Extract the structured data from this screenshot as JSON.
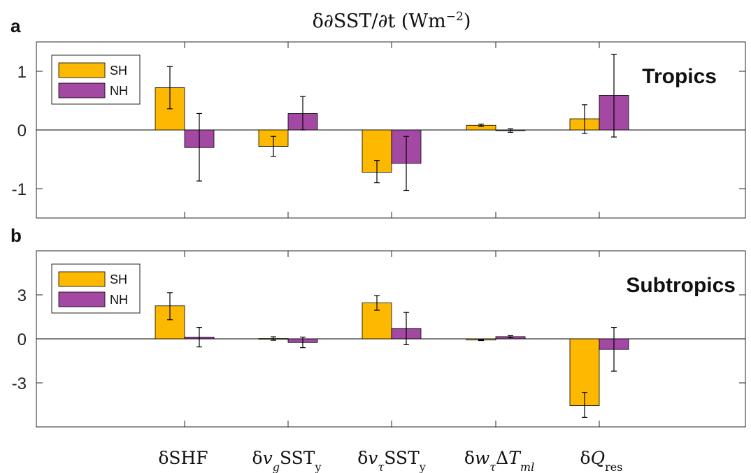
{
  "figure": {
    "title": "δ∂SST/∂t (Wm⁻²)",
    "colors": {
      "SH": "#FDB900",
      "NH": "#A349A4",
      "axis": "#262626",
      "zero_line": "#000000"
    }
  },
  "chart_data": [
    {
      "type": "bar",
      "panel": "a",
      "region_label": "Tropics",
      "categories": [
        "δSHF",
        "δv_gSST_y",
        "δv_τSST_y",
        "δw_τΔT_ml",
        "δQ_res"
      ],
      "series": [
        {
          "name": "SH",
          "values": [
            0.72,
            -0.28,
            -0.72,
            0.08,
            0.19
          ],
          "error_low": [
            0.36,
            -0.45,
            -0.9,
            0.06,
            -0.06
          ],
          "error_high": [
            1.08,
            -0.11,
            -0.52,
            0.1,
            0.43
          ]
        },
        {
          "name": "NH",
          "values": [
            -0.3,
            0.28,
            -0.57,
            -0.01,
            0.59
          ],
          "error_low": [
            -0.87,
            0.0,
            -1.03,
            -0.04,
            -0.12
          ],
          "error_high": [
            0.28,
            0.57,
            -0.11,
            0.02,
            1.29
          ]
        }
      ],
      "ylim": [
        -1.5,
        1.5
      ],
      "yticks": [
        -1,
        0,
        1
      ],
      "ytick_labels": [
        "-1",
        "0",
        "1"
      ],
      "grid": false,
      "legend": "top-left"
    },
    {
      "type": "bar",
      "panel": "b",
      "region_label": "Subtropics",
      "categories": [
        "δSHF",
        "δv_gSST_y",
        "δv_τSST_y",
        "δw_τΔT_ml",
        "δQ_res"
      ],
      "series": [
        {
          "name": "SH",
          "values": [
            2.25,
            0.02,
            2.45,
            -0.08,
            -4.55
          ],
          "error_low": [
            1.3,
            -0.1,
            1.95,
            -0.12,
            -5.35
          ],
          "error_high": [
            3.15,
            0.14,
            2.95,
            -0.04,
            -3.65
          ]
        },
        {
          "name": "NH",
          "values": [
            0.12,
            -0.25,
            0.7,
            0.15,
            -0.72
          ],
          "error_low": [
            -0.55,
            -0.6,
            -0.4,
            0.08,
            -2.2
          ],
          "error_high": [
            0.78,
            0.12,
            1.8,
            0.22,
            0.78
          ]
        }
      ],
      "ylim": [
        -6,
        6
      ],
      "yticks": [
        -3,
        0,
        3
      ],
      "ytick_labels": [
        "-3",
        "0",
        "3"
      ],
      "grid": false,
      "legend": "top-left"
    }
  ]
}
